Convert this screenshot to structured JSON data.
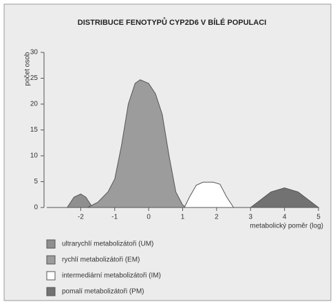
{
  "chart_data": {
    "type": "area",
    "title": "DISTRIBUCE FENOTYPŮ CYP2D6 V BÍLÉ POPULACI",
    "y_label": "počet osob",
    "x_label": "metabolický poměr (log)",
    "xlim": [
      -3,
      5
    ],
    "xticks": [
      -2,
      -1,
      0,
      1,
      2,
      3,
      4,
      5
    ],
    "ylim": [
      0,
      30
    ],
    "yticks": [
      0,
      5,
      10,
      15,
      20,
      25,
      30
    ],
    "series": [
      {
        "name": "ultrarychlí metabolizátoři (UM)",
        "color": "#8f8f8f",
        "x": [
          -2.4,
          -2.3,
          -2.2,
          -2.0,
          -1.85,
          -1.75,
          -1.65
        ],
        "values": [
          0,
          1,
          2,
          2.6,
          2,
          1,
          0
        ]
      },
      {
        "name": "rychlí metabolizátoři (EM)",
        "color": "#9c9c9c",
        "x": [
          -1.8,
          -1.5,
          -1.2,
          -1.0,
          -0.8,
          -0.6,
          -0.4,
          -0.25,
          0,
          0.2,
          0.4,
          0.6,
          0.8,
          1.0,
          1.1
        ],
        "values": [
          0,
          1,
          3,
          5.5,
          12,
          20,
          24,
          24.7,
          24,
          22,
          18,
          10,
          3,
          0.5,
          0
        ]
      },
      {
        "name": "intermediární metabolizátoři (IM)",
        "color": "#ffffff",
        "x": [
          1.05,
          1.2,
          1.4,
          1.6,
          1.9,
          2.1,
          2.3,
          2.5
        ],
        "values": [
          0,
          2,
          4.3,
          4.9,
          4.9,
          4.5,
          2,
          0
        ]
      },
      {
        "name": "pomalí metabolizátoři (PM)",
        "color": "#727272",
        "x": [
          3.0,
          3.3,
          3.6,
          4.0,
          4.4,
          4.7,
          5.0
        ],
        "values": [
          0,
          1.5,
          3,
          3.8,
          3,
          1.5,
          0
        ]
      }
    ]
  }
}
